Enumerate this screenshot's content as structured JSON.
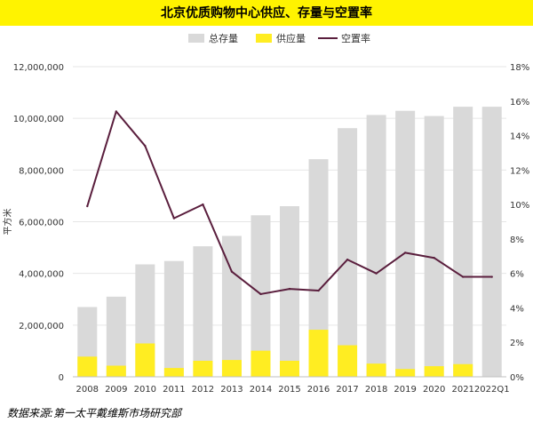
{
  "chart_data": {
    "type": "bar",
    "title": "北京优质购物中心供应、存量与空置率",
    "ylabel": "平方米",
    "categories": [
      "2008",
      "2009",
      "2010",
      "2011",
      "2012",
      "2013",
      "2014",
      "2015",
      "2016",
      "2017",
      "2018",
      "2019",
      "2020",
      "2021",
      "2022Q1"
    ],
    "series": [
      {
        "name": "总存量",
        "type": "bar",
        "axis": "left",
        "color": "#d9d9d9",
        "values": [
          2700000,
          3100000,
          4350000,
          4480000,
          5050000,
          5450000,
          6250000,
          6600000,
          8420000,
          9620000,
          10130000,
          10290000,
          10090000,
          10450000,
          10450000
        ]
      },
      {
        "name": "供应量",
        "type": "bar",
        "axis": "left",
        "color": "#ffed22",
        "values": [
          780000,
          430000,
          1290000,
          340000,
          620000,
          650000,
          1010000,
          620000,
          1820000,
          1220000,
          510000,
          300000,
          410000,
          490000,
          0
        ]
      },
      {
        "name": "空置率",
        "type": "line",
        "axis": "right",
        "color": "#5a1e3d",
        "values": [
          9.9,
          15.4,
          13.4,
          9.2,
          10.0,
          6.1,
          4.8,
          5.1,
          5.0,
          6.8,
          6.0,
          7.2,
          6.9,
          5.8,
          5.8
        ]
      }
    ],
    "left_axis": {
      "min": 0,
      "max": 12000000,
      "step": 2000000,
      "tick_labels": [
        "0",
        "2,000,000",
        "4,000,000",
        "6,000,000",
        "8,000,000",
        "10,000,000",
        "12,000,000"
      ]
    },
    "right_axis": {
      "min": 0,
      "max": 18,
      "step": 2,
      "tick_labels": [
        "0%",
        "2%",
        "4%",
        "6%",
        "8%",
        "10%",
        "12%",
        "14%",
        "16%",
        "18%"
      ]
    },
    "legend_position": "top"
  },
  "footer": {
    "source": "数据来源:第一太平戴维斯市场研究部"
  }
}
